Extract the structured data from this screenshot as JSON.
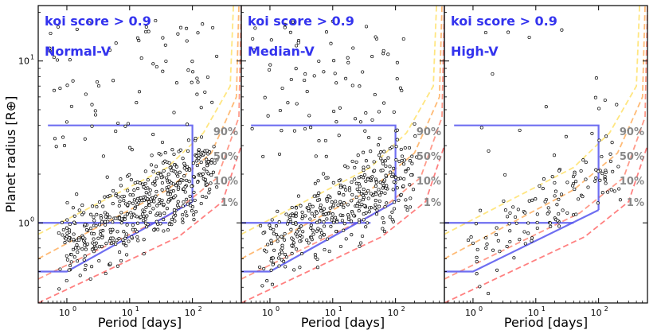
{
  "chart_data": [
    {
      "type": "scatter",
      "title": "koi score > 0.9",
      "subtitle": "Normal-V",
      "xlabel": "Period [days]",
      "ylabel": "Planet radius [R⊕]",
      "xscale": "log",
      "yscale": "log",
      "xlim": [
        0.35,
        600
      ],
      "ylim": [
        0.32,
        22
      ],
      "point_count_estimate": 560,
      "box": {
        "x": [
          0.5,
          100
        ],
        "y_top": 4.0,
        "y_bottom_left": 1.0,
        "y_bottom_right_top": 1.35
      },
      "contours": [
        {
          "label": "90%",
          "x": [
            0.35,
            40,
            150,
            400,
            450
          ],
          "y": [
            0.85,
            2.2,
            3.6,
            7.0,
            22
          ]
        },
        {
          "label": "50%",
          "x": [
            0.35,
            40,
            200,
            500,
            550
          ],
          "y": [
            0.6,
            1.6,
            2.7,
            6.0,
            22
          ]
        },
        {
          "label": "10%",
          "x": [
            0.35,
            50,
            250,
            550,
            600
          ],
          "y": [
            0.45,
            1.15,
            1.9,
            4.5,
            22
          ]
        },
        {
          "label": "1%",
          "x": [
            0.35,
            60,
            300,
            600
          ],
          "y": [
            0.32,
            0.82,
            1.35,
            3.0
          ]
        }
      ]
    },
    {
      "type": "scatter",
      "title": "koi score > 0.9",
      "subtitle": "Median-V",
      "xlabel": "Period [days]",
      "xscale": "log",
      "yscale": "log",
      "xlim": [
        0.35,
        600
      ],
      "ylim": [
        0.32,
        22
      ],
      "point_count_estimate": 470,
      "box": {
        "x": [
          0.5,
          100
        ],
        "y_top": 4.0,
        "y_bottom_left": 1.0,
        "y_bottom_right_top": 1.35
      },
      "contours": [
        {
          "label": "90%",
          "x": [
            0.35,
            40,
            150,
            400,
            450
          ],
          "y": [
            0.85,
            2.2,
            3.6,
            7.0,
            22
          ]
        },
        {
          "label": "50%",
          "x": [
            0.35,
            40,
            200,
            500,
            550
          ],
          "y": [
            0.6,
            1.6,
            2.7,
            6.0,
            22
          ]
        },
        {
          "label": "10%",
          "x": [
            0.35,
            50,
            250,
            550,
            600
          ],
          "y": [
            0.45,
            1.15,
            1.9,
            4.5,
            22
          ]
        },
        {
          "label": "1%",
          "x": [
            0.35,
            60,
            300,
            600
          ],
          "y": [
            0.32,
            0.82,
            1.35,
            3.0
          ]
        }
      ]
    },
    {
      "type": "scatter",
      "title": "koi score > 0.9",
      "subtitle": "High-V",
      "xlabel": "Period [days]",
      "xscale": "log",
      "yscale": "log",
      "xlim": [
        0.35,
        600
      ],
      "ylim": [
        0.32,
        22
      ],
      "point_count_estimate": 140,
      "box": {
        "x": [
          0.5,
          100
        ],
        "y_top": 4.0,
        "y_bottom_left": 1.0,
        "y_bottom_right_top": 1.2
      },
      "contours": [
        {
          "label": "90%",
          "x": [
            0.35,
            40,
            150,
            400,
            450
          ],
          "y": [
            0.85,
            2.2,
            3.6,
            7.0,
            22
          ]
        },
        {
          "label": "50%",
          "x": [
            0.35,
            40,
            200,
            500,
            550
          ],
          "y": [
            0.6,
            1.6,
            2.7,
            6.0,
            22
          ]
        },
        {
          "label": "10%",
          "x": [
            0.35,
            50,
            250,
            550,
            600
          ],
          "y": [
            0.45,
            1.15,
            1.9,
            4.5,
            22
          ]
        },
        {
          "label": "1%",
          "x": [
            0.35,
            60,
            300,
            600
          ],
          "y": [
            0.32,
            0.82,
            1.35,
            3.0
          ]
        }
      ]
    }
  ],
  "colors": {
    "box": "#5555ee",
    "c90": "#ffe680",
    "c50": "#ffbb77",
    "c10": "#ff9a8a",
    "c1": "#ff8080",
    "title": "#3333ee",
    "label": "#888888"
  },
  "ticks": {
    "x": [
      {
        "v": 1,
        "label": "10",
        "exp": "0"
      },
      {
        "v": 10,
        "label": "10",
        "exp": "1"
      },
      {
        "v": 100,
        "label": "10",
        "exp": "2"
      }
    ],
    "y": [
      {
        "v": 1,
        "label": "10",
        "exp": "0"
      },
      {
        "v": 10,
        "label": "10",
        "exp": "1"
      }
    ]
  }
}
